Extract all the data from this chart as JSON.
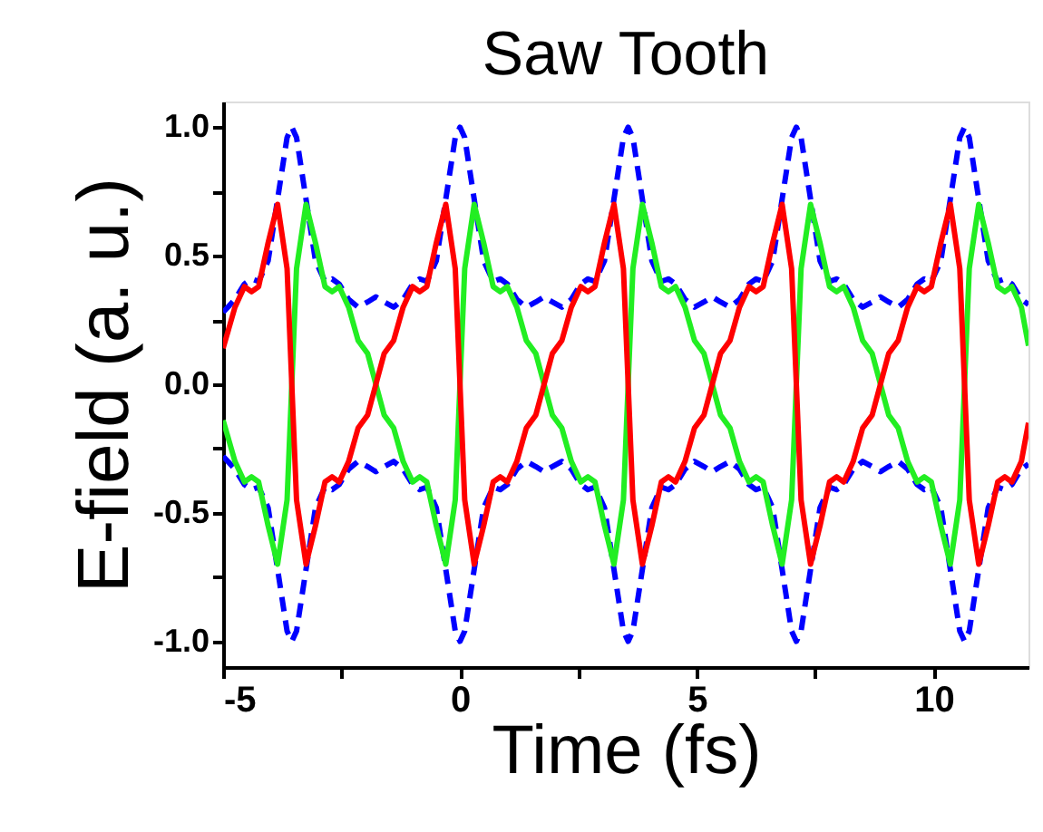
{
  "chart_data": {
    "type": "line",
    "title": "Saw Tooth",
    "xlabel": "Time (fs)",
    "ylabel": "E-field (a. u.)",
    "x": [
      -5,
      -4.75,
      -4.55,
      -4.4,
      -4.25,
      -4.05,
      -3.85,
      -3.65,
      -3.55,
      -3.45,
      -3.25,
      -3.05,
      -2.85,
      -2.7,
      -2.55,
      -2.35,
      -2.15,
      -1.95,
      -1.775,
      -1.6,
      -1.4,
      -1.2,
      -1.0,
      -0.85,
      -0.7,
      -0.5,
      -0.3,
      -0.1,
      0,
      0.1,
      0.3,
      0.5,
      0.7,
      0.85,
      1.0,
      1.2,
      1.4,
      1.6,
      1.775,
      1.95,
      2.15,
      2.35,
      2.55,
      2.7,
      2.85,
      3.05,
      3.25,
      3.45,
      3.55,
      3.65,
      3.85,
      4.05,
      4.25,
      4.4,
      4.55,
      4.75,
      4.95,
      5.15,
      5.325,
      5.5,
      5.7,
      5.9,
      6.1,
      6.25,
      6.4,
      6.6,
      6.8,
      7.0,
      7.1,
      7.2,
      7.4,
      7.6,
      7.8,
      7.95,
      8.1,
      8.3,
      8.5,
      8.7,
      8.875,
      9.05,
      9.25,
      9.45,
      9.65,
      9.8,
      9.95,
      10.15,
      10.35,
      10.55,
      10.65,
      10.75,
      10.95,
      11.15,
      11.35,
      11.5,
      11.65,
      11.85,
      12
    ],
    "series": [
      {
        "color": "#0000ff",
        "line_style": "dashed",
        "values": [
          0.28,
          0.33,
          0.39,
          0.41,
          0.4,
          0.48,
          0.72,
          0.96,
          1.0,
          0.96,
          0.72,
          0.48,
          0.4,
          0.41,
          0.39,
          0.33,
          0.3,
          0.32,
          0.34,
          0.32,
          0.3,
          0.33,
          0.39,
          0.41,
          0.4,
          0.48,
          0.72,
          0.96,
          1.0,
          0.96,
          0.72,
          0.48,
          0.4,
          0.41,
          0.39,
          0.33,
          0.3,
          0.32,
          0.34,
          0.32,
          0.3,
          0.33,
          0.39,
          0.41,
          0.4,
          0.48,
          0.72,
          0.96,
          1.0,
          0.96,
          0.72,
          0.48,
          0.4,
          0.41,
          0.39,
          0.33,
          0.3,
          0.32,
          0.34,
          0.32,
          0.3,
          0.33,
          0.39,
          0.41,
          0.4,
          0.48,
          0.72,
          0.96,
          1.0,
          0.96,
          0.72,
          0.48,
          0.4,
          0.41,
          0.39,
          0.33,
          0.3,
          0.32,
          0.34,
          0.32,
          0.3,
          0.33,
          0.39,
          0.41,
          0.4,
          0.48,
          0.72,
          0.96,
          1.0,
          0.96,
          0.72,
          0.48,
          0.4,
          0.41,
          0.39,
          0.33,
          0.31
        ]
      },
      {
        "color": "#0000ff",
        "line_style": "dashed",
        "values": [
          -0.28,
          -0.33,
          -0.39,
          -0.41,
          -0.4,
          -0.48,
          -0.72,
          -0.96,
          -1.0,
          -0.96,
          -0.72,
          -0.48,
          -0.4,
          -0.41,
          -0.39,
          -0.33,
          -0.3,
          -0.32,
          -0.34,
          -0.32,
          -0.3,
          -0.33,
          -0.39,
          -0.41,
          -0.4,
          -0.48,
          -0.72,
          -0.96,
          -1.0,
          -0.96,
          -0.72,
          -0.48,
          -0.4,
          -0.41,
          -0.39,
          -0.33,
          -0.3,
          -0.32,
          -0.34,
          -0.32,
          -0.3,
          -0.33,
          -0.39,
          -0.41,
          -0.4,
          -0.48,
          -0.72,
          -0.96,
          -1.0,
          -0.96,
          -0.72,
          -0.48,
          -0.4,
          -0.41,
          -0.39,
          -0.33,
          -0.3,
          -0.32,
          -0.34,
          -0.32,
          -0.3,
          -0.33,
          -0.39,
          -0.41,
          -0.4,
          -0.48,
          -0.72,
          -0.96,
          -1.0,
          -0.96,
          -0.72,
          -0.48,
          -0.4,
          -0.41,
          -0.39,
          -0.33,
          -0.3,
          -0.32,
          -0.34,
          -0.32,
          -0.3,
          -0.33,
          -0.39,
          -0.41,
          -0.4,
          -0.48,
          -0.72,
          -0.96,
          -1.0,
          -0.96,
          -0.72,
          -0.48,
          -0.4,
          -0.41,
          -0.39,
          -0.33,
          -0.31
        ]
      },
      {
        "color": "#22ee22",
        "line_style": "solid",
        "values": [
          -0.14,
          -0.3,
          -0.38,
          -0.36,
          -0.38,
          -0.55,
          -0.7,
          -0.45,
          0,
          0.45,
          0.7,
          0.55,
          0.38,
          0.36,
          0.38,
          0.3,
          0.17,
          0.12,
          0,
          -0.12,
          -0.17,
          -0.3,
          -0.38,
          -0.36,
          -0.38,
          -0.55,
          -0.7,
          -0.45,
          0,
          0.45,
          0.7,
          0.55,
          0.38,
          0.36,
          0.38,
          0.3,
          0.17,
          0.12,
          0,
          -0.12,
          -0.17,
          -0.3,
          -0.38,
          -0.36,
          -0.38,
          -0.55,
          -0.7,
          -0.45,
          0,
          0.45,
          0.7,
          0.55,
          0.38,
          0.36,
          0.38,
          0.3,
          0.17,
          0.12,
          0,
          -0.12,
          -0.17,
          -0.3,
          -0.38,
          -0.36,
          -0.38,
          -0.55,
          -0.7,
          -0.45,
          0,
          0.45,
          0.7,
          0.55,
          0.38,
          0.36,
          0.38,
          0.3,
          0.17,
          0.12,
          0,
          -0.12,
          -0.17,
          -0.3,
          -0.38,
          -0.36,
          -0.38,
          -0.55,
          -0.7,
          -0.45,
          0,
          0.45,
          0.7,
          0.55,
          0.38,
          0.36,
          0.38,
          0.3,
          0.15
        ]
      },
      {
        "color": "#ff0000",
        "line_style": "solid",
        "values": [
          0.14,
          0.3,
          0.38,
          0.36,
          0.38,
          0.55,
          0.7,
          0.45,
          0,
          -0.45,
          -0.7,
          -0.55,
          -0.38,
          -0.36,
          -0.38,
          -0.3,
          -0.17,
          -0.12,
          0,
          0.12,
          0.17,
          0.3,
          0.38,
          0.36,
          0.38,
          0.55,
          0.7,
          0.45,
          0,
          -0.45,
          -0.7,
          -0.55,
          -0.38,
          -0.36,
          -0.38,
          -0.3,
          -0.17,
          -0.12,
          0,
          0.12,
          0.17,
          0.3,
          0.38,
          0.36,
          0.38,
          0.55,
          0.7,
          0.45,
          0,
          -0.45,
          -0.7,
          -0.55,
          -0.38,
          -0.36,
          -0.38,
          -0.3,
          -0.17,
          -0.12,
          0,
          0.12,
          0.17,
          0.3,
          0.38,
          0.36,
          0.38,
          0.55,
          0.7,
          0.45,
          0,
          -0.45,
          -0.7,
          -0.55,
          -0.38,
          -0.36,
          -0.38,
          -0.3,
          -0.17,
          -0.12,
          0,
          0.12,
          0.17,
          0.3,
          0.38,
          0.36,
          0.38,
          0.55,
          0.7,
          0.45,
          0,
          -0.45,
          -0.7,
          -0.55,
          -0.38,
          -0.36,
          -0.38,
          -0.3,
          -0.15
        ]
      }
    ],
    "xlim": [
      -5,
      12
    ],
    "xticks": [
      -5,
      {
        "value": -2.5,
        "label": null
      },
      0,
      {
        "value": 2.5,
        "label": null
      },
      5,
      {
        "value": 7.5,
        "label": null
      },
      10
    ],
    "ylim": [
      -1.1,
      1.1
    ],
    "yticks": [
      {
        "value": -1,
        "label": "-1.0"
      },
      {
        "value": -0.75,
        "label": null
      },
      {
        "value": -0.5,
        "label": "-0.5"
      },
      {
        "value": -0.25,
        "label": null
      },
      {
        "value": 0,
        "label": "0.0"
      },
      {
        "value": 0.25,
        "label": null
      },
      {
        "value": 0.5,
        "label": "0.5"
      },
      {
        "value": 0.75,
        "label": null
      },
      {
        "value": 1,
        "label": "1.0"
      }
    ],
    "grid": false,
    "legend": false
  }
}
